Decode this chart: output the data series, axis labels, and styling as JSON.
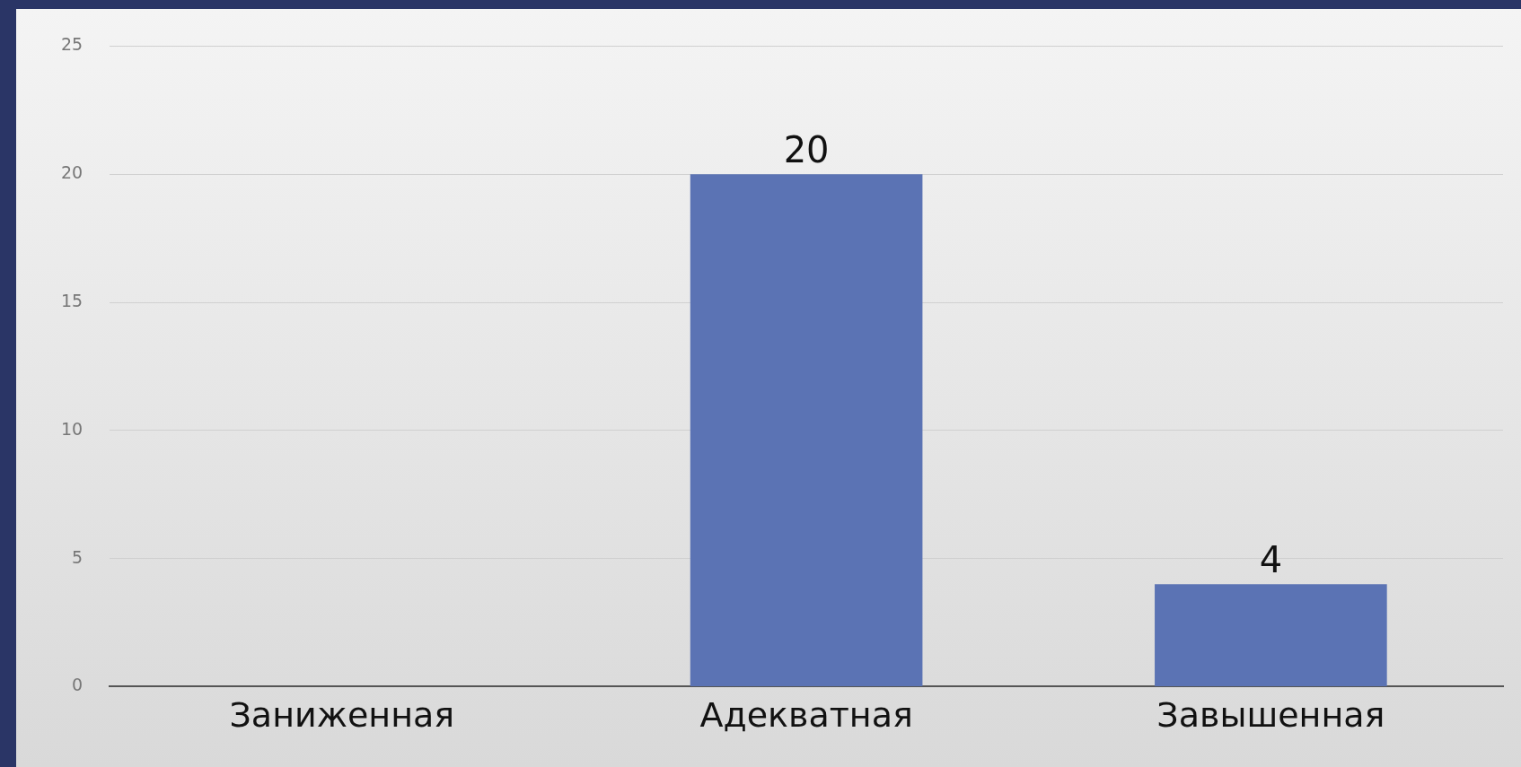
{
  "chart_data": {
    "type": "bar",
    "categories": [
      "Заниженная",
      "Адекватная",
      "Завышенная"
    ],
    "values": [
      0,
      20,
      4
    ],
    "value_labels": [
      null,
      "20",
      "4"
    ],
    "color": "#5b73b4",
    "ylim": [
      0,
      25
    ],
    "yticks": [
      0,
      5,
      10,
      15,
      20,
      25
    ],
    "grid": "y",
    "legend": false
  }
}
